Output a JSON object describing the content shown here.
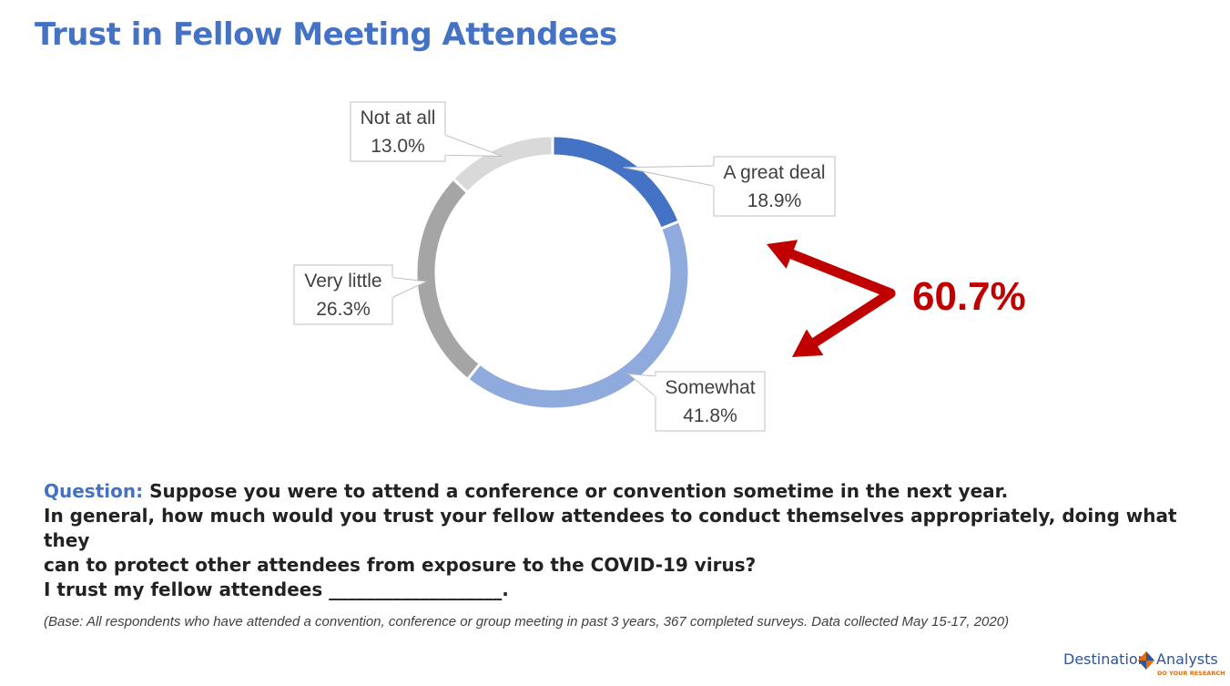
{
  "page": {
    "title": "Trust in Fellow Meeting Attendees",
    "title_color": "#4472c4",
    "question_prefix": "Question:",
    "question_lines": [
      "Suppose you were to attend a conference or convention sometime in the next year.",
      "In general, how much would you trust your fellow attendees to conduct themselves appropriately, doing what they",
      "can to protect other attendees from exposure to the COVID-19 virus?"
    ],
    "trust_line": "I trust my fellow attendees ___________________.",
    "base_note": "(Base: All respondents who have attended a convention, conference or group meeting in past 3 years, 367 completed surveys. Data collected May 15-17, 2020)",
    "logo": {
      "word1": "Destination",
      "word2": "Analysts",
      "tagline": "DO YOUR RESEARCH",
      "colors": [
        "#2f5597",
        "#e46c0a"
      ]
    }
  },
  "chart_data": {
    "type": "pie",
    "style": "donut",
    "start": "12 o'clock, clockwise",
    "slices": [
      {
        "label": "A great deal",
        "value": 18.9,
        "value_label": "18.9%",
        "color": "#4472c4"
      },
      {
        "label": "Somewhat",
        "value": 41.8,
        "value_label": "41.8%",
        "color": "#8faadc"
      },
      {
        "label": "Very little",
        "value": 26.3,
        "value_label": "26.3%",
        "color": "#a5a5a5"
      },
      {
        "label": "Not at all",
        "value": 13.0,
        "value_label": "13.0%",
        "color": "#d9d9d9"
      }
    ],
    "annotation": {
      "text": "60.7%",
      "color": "#c00000",
      "refers_to": [
        "A great deal",
        "Somewhat"
      ]
    }
  }
}
